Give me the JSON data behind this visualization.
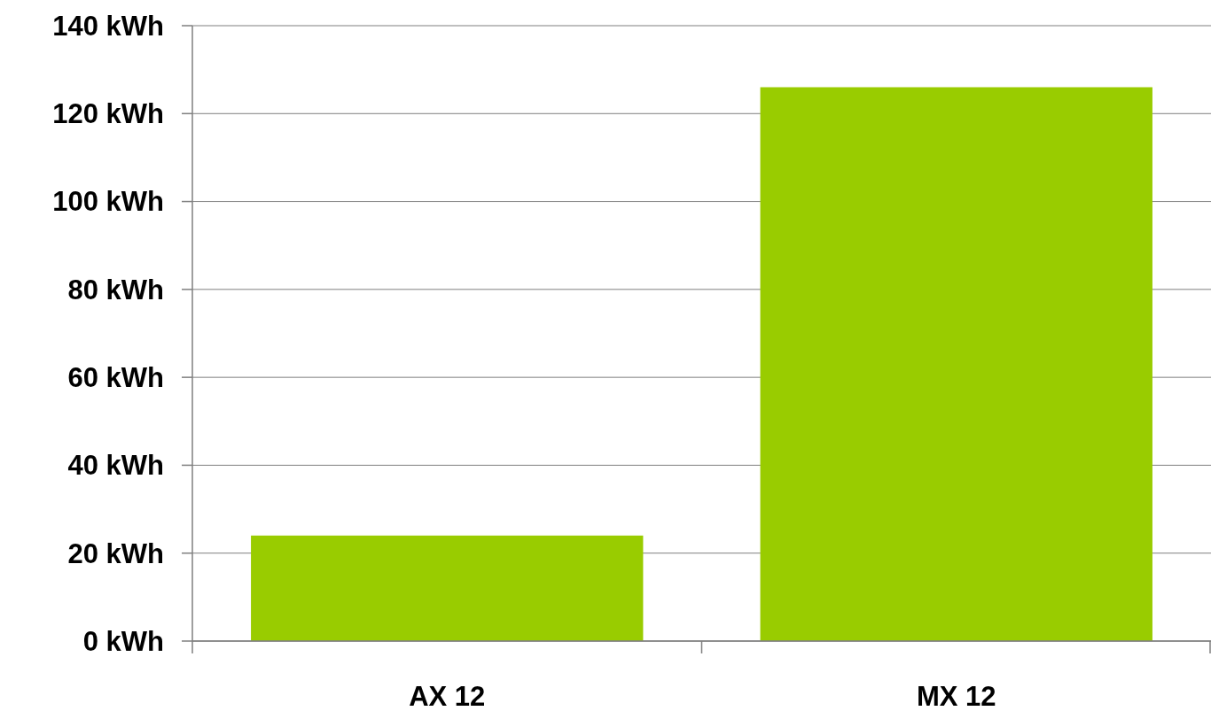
{
  "chart_data": {
    "type": "bar",
    "categories": [
      "AX 12",
      "MX 12"
    ],
    "values": [
      24,
      126
    ],
    "color": "#99cc00",
    "ylim": [
      0,
      140
    ],
    "yticks": [
      {
        "value": 0,
        "label": "0 kWh"
      },
      {
        "value": 20,
        "label": "20 kWh"
      },
      {
        "value": 40,
        "label": "40 kWh"
      },
      {
        "value": 60,
        "label": "60 kWh"
      },
      {
        "value": 80,
        "label": "80 kWh"
      },
      {
        "value": 100,
        "label": "100 kWh"
      },
      {
        "value": 120,
        "label": "120 kWh"
      },
      {
        "value": 140,
        "label": "140 kWh"
      }
    ],
    "grid": "y"
  }
}
